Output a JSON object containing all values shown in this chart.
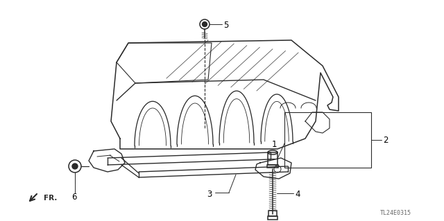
{
  "bg_color": "#ffffff",
  "line_color": "#2a2a2a",
  "label_color": "#000000",
  "watermark": "TL24E0315",
  "figsize": [
    6.4,
    3.19
  ],
  "dpi": 100
}
